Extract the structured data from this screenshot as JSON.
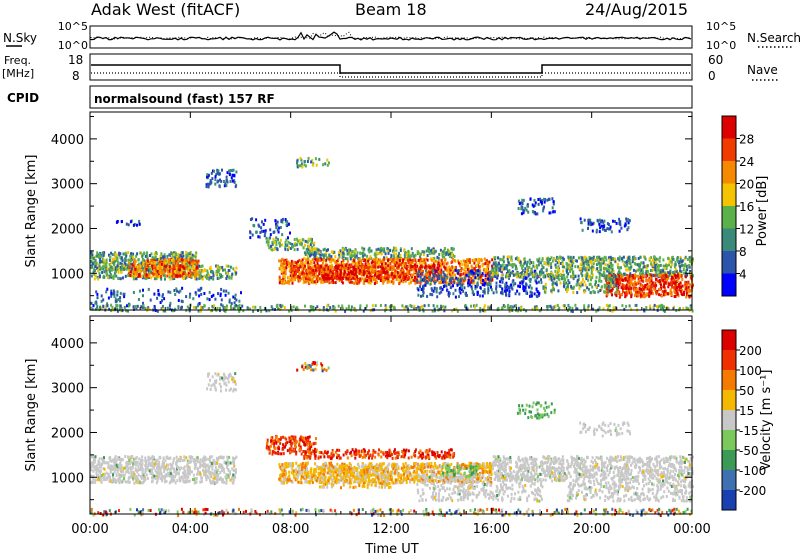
{
  "header": {
    "station": "Adak West (fitACF)",
    "beam": "Beam 18",
    "date": "24/Aug/2015"
  },
  "top_panels": {
    "nsky_label": "N.Sky",
    "nsearch_label": "N.Search",
    "noise_ticks_left": [
      "10^5",
      "10^0"
    ],
    "noise_ticks_right": [
      "10^5",
      "10^0"
    ],
    "freq_label_1": "Freq.",
    "freq_label_2": "[MHz]",
    "freq_ticks": [
      "18",
      "8"
    ],
    "nave_ticks": [
      "60",
      "0"
    ],
    "nave_label": "Nave",
    "cpid_label": "CPID",
    "cpid_text": "normalsound (fast) 157 RF"
  },
  "chart_data": [
    {
      "type": "heatmap",
      "quantity": "Power",
      "ylabel": "Slant Range [km]",
      "xlabel": "",
      "x_ticks": [
        "00:00",
        "04:00",
        "08:00",
        "12:00",
        "16:00",
        "20:00",
        "00:00"
      ],
      "y_ticks": [
        "1000",
        "2000",
        "3000",
        "4000"
      ],
      "ylim": [
        180,
        4600
      ],
      "xlim_hours": [
        0,
        24
      ],
      "colorbar_label": "Power [dB]",
      "colorbar_ticks": [
        "4",
        "8",
        "12",
        "16",
        "20",
        "24",
        "28"
      ],
      "colorbar_colors": [
        "#0000ff",
        "#2a55aa",
        "#3a8a7a",
        "#5bb04a",
        "#f5c400",
        "#f58a00",
        "#f03c00",
        "#dd0000"
      ]
    },
    {
      "type": "heatmap",
      "quantity": "Velocity",
      "ylabel": "Slant Range [km]",
      "xlabel": "Time UT",
      "x_ticks": [
        "00:00",
        "04:00",
        "08:00",
        "12:00",
        "16:00",
        "20:00",
        "00:00"
      ],
      "y_ticks": [
        "1000",
        "2000",
        "3000",
        "4000"
      ],
      "ylim": [
        180,
        4600
      ],
      "xlim_hours": [
        0,
        24
      ],
      "colorbar_label": "Velocity [m s⁻¹]",
      "colorbar_ticks": [
        "200",
        "100",
        "50",
        "15",
        "-15",
        "-50",
        "-100",
        "-200"
      ],
      "colorbar_colors": [
        "#1a3fb0",
        "#3f70b0",
        "#3b9a55",
        "#7ac95a",
        "#c8c8c8",
        "#f5b800",
        "#f57a00",
        "#f03000",
        "#dd0000"
      ]
    }
  ]
}
